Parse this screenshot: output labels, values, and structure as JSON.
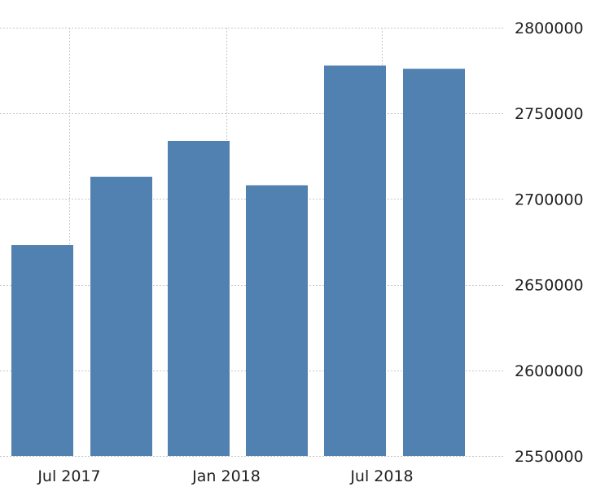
{
  "chart_data": {
    "type": "bar",
    "title": "",
    "xlabel": "",
    "ylabel": "",
    "series": [
      {
        "values": [
          2673000,
          2713000,
          2734000,
          2708000,
          2778000,
          2776000
        ]
      }
    ],
    "ylim": [
      2550000,
      2800000
    ],
    "y_ticks": [
      2550000,
      2600000,
      2650000,
      2700000,
      2750000,
      2800000
    ],
    "y_tick_labels": [
      "2550000",
      "2600000",
      "2650000",
      "2700000",
      "2750000",
      "2800000"
    ],
    "x_tick_labels": [
      "Jul 2017",
      "Jan 2018",
      "Jul 2018"
    ],
    "grid": true,
    "y_axis_position": "right",
    "bar_color": "#5181b0"
  }
}
